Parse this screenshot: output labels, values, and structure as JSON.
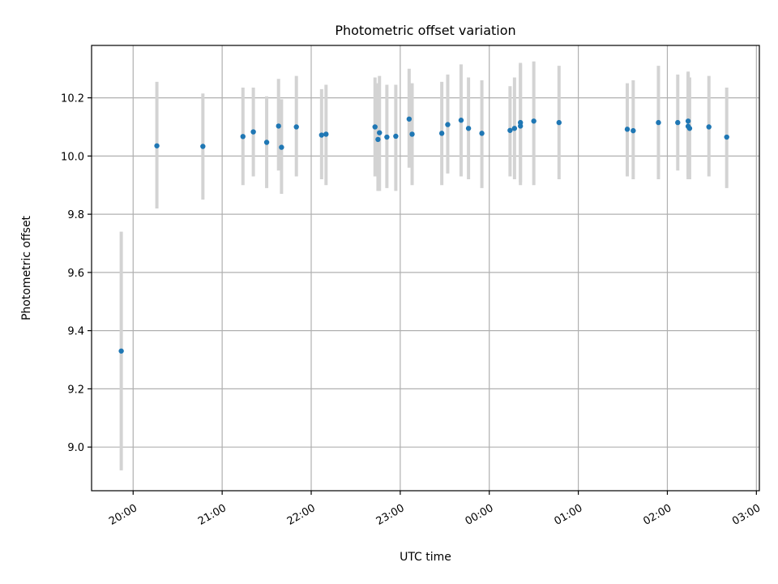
{
  "chart_data": {
    "type": "scatter",
    "title": "Photometric offset variation",
    "xlabel": "UTC time",
    "ylabel": "Photometric offset",
    "grid": true,
    "xlim": [
      "19:32",
      "03:02"
    ],
    "ylim": [
      8.85,
      10.38
    ],
    "xticks": [
      "20:00",
      "21:00",
      "22:00",
      "23:00",
      "00:00",
      "01:00",
      "02:00",
      "03:00"
    ],
    "yticks": [
      "9.0",
      "9.2",
      "9.4",
      "9.6",
      "9.8",
      "10.0",
      "10.2"
    ],
    "colors": {
      "points": "#1f77b4",
      "error_bars": "#d3d3d3",
      "grid": "#b0b0b0"
    },
    "series": [
      {
        "x": [
          "19:52",
          "20:16",
          "20:47",
          "21:14",
          "21:21",
          "21:30",
          "21:38",
          "21:40",
          "21:50",
          "22:07",
          "22:10",
          "22:43",
          "22:45",
          "22:46",
          "22:51",
          "22:57",
          "23:06",
          "23:08",
          "23:28",
          "23:32",
          "23:41",
          "23:46",
          "23:55",
          "00:14",
          "00:17",
          "00:21",
          "00:21",
          "00:30",
          "00:47",
          "01:33",
          "01:37",
          "01:54",
          "02:07",
          "02:14",
          "02:14",
          "02:15",
          "02:28",
          "02:40"
        ],
        "y": [
          9.33,
          10.035,
          10.033,
          10.067,
          10.083,
          10.047,
          10.103,
          10.03,
          10.1,
          10.072,
          10.075,
          10.1,
          10.057,
          10.08,
          10.065,
          10.068,
          10.127,
          10.075,
          10.078,
          10.108,
          10.123,
          10.095,
          10.078,
          10.088,
          10.095,
          10.103,
          10.115,
          10.12,
          10.115,
          10.092,
          10.087,
          10.115,
          10.115,
          10.12,
          10.102,
          10.095,
          10.1,
          10.065
        ],
        "yerr_low": [
          8.92,
          9.82,
          9.85,
          9.9,
          9.93,
          9.89,
          9.95,
          9.87,
          9.93,
          9.92,
          9.9,
          9.93,
          9.88,
          9.88,
          9.89,
          9.88,
          9.96,
          9.9,
          9.9,
          9.94,
          9.93,
          9.92,
          9.89,
          9.93,
          9.92,
          9.9,
          9.91,
          9.9,
          9.92,
          9.93,
          9.92,
          9.92,
          9.95,
          9.92,
          9.93,
          9.92,
          9.93,
          9.89
        ],
        "yerr_high": [
          9.74,
          10.255,
          10.215,
          10.235,
          10.235,
          10.205,
          10.265,
          10.195,
          10.275,
          10.23,
          10.245,
          10.27,
          10.25,
          10.275,
          10.245,
          10.245,
          10.3,
          10.25,
          10.255,
          10.28,
          10.315,
          10.27,
          10.26,
          10.24,
          10.27,
          10.32,
          10.315,
          10.325,
          10.31,
          10.25,
          10.26,
          10.31,
          10.28,
          10.29,
          10.285,
          10.27,
          10.275,
          10.235
        ]
      }
    ]
  }
}
